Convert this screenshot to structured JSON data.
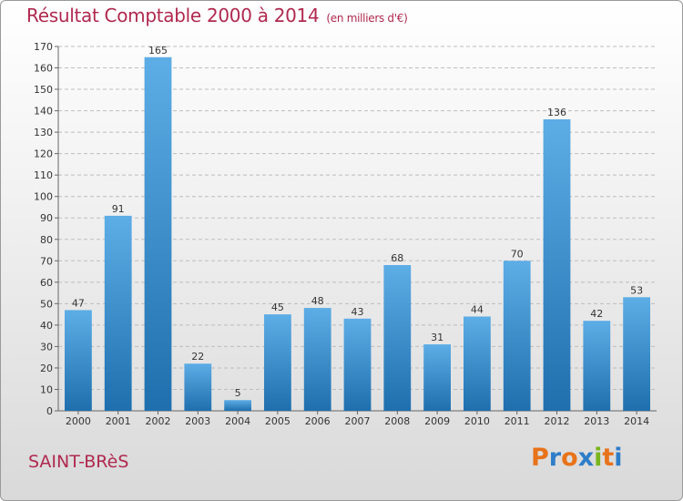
{
  "title": "Résultat Comptable 2000 à 2014",
  "subtitle": "(en milliers d'€)",
  "commune": "SAINT-BRèS",
  "logo": {
    "text": "Proxiti",
    "letters": [
      {
        "ch": "P",
        "color": "#e8731a"
      },
      {
        "ch": "r",
        "color": "#2e7dc8"
      },
      {
        "ch": "o",
        "color": "#e8731a"
      },
      {
        "ch": "x",
        "color": "#2e7dc8"
      },
      {
        "ch": "i",
        "color": "#7ab51d"
      },
      {
        "ch": "t",
        "color": "#e8731a"
      },
      {
        "ch": "i",
        "color": "#2e7dc8"
      }
    ]
  },
  "colors": {
    "title": "#b0294f",
    "bar_top": "#5dade6",
    "bar_bottom": "#1f6fae",
    "grid": "#bdbdbd",
    "axis": "#666666"
  },
  "chart_data": {
    "type": "bar",
    "categories": [
      "2000",
      "2001",
      "2002",
      "2003",
      "2004",
      "2005",
      "2006",
      "2007",
      "2008",
      "2009",
      "2010",
      "2011",
      "2012",
      "2013",
      "2014"
    ],
    "values": [
      47,
      91,
      165,
      22,
      5,
      45,
      48,
      43,
      68,
      31,
      44,
      70,
      136,
      42,
      53
    ],
    "ylim": [
      0,
      170
    ],
    "ytick_step": 10,
    "grid": true,
    "legend": "none"
  }
}
